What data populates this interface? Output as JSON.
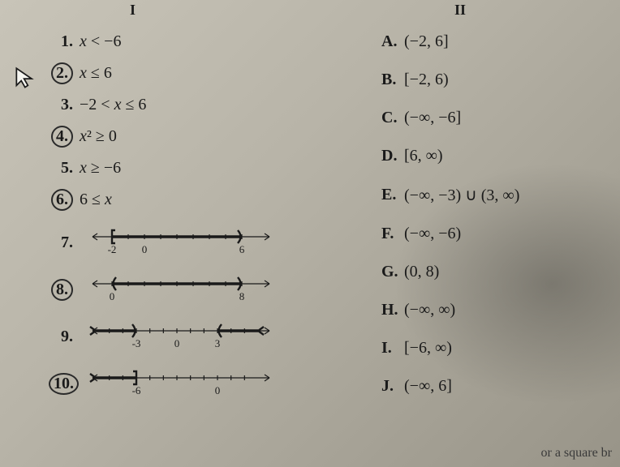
{
  "headers": {
    "left": "I",
    "right": "II"
  },
  "left_items": [
    {
      "n": "1.",
      "circled": false,
      "expr": "x < −6"
    },
    {
      "n": "2.",
      "circled": true,
      "expr": "x ≤ 6"
    },
    {
      "n": "3.",
      "circled": false,
      "expr": "−2 < x ≤ 6"
    },
    {
      "n": "4.",
      "circled": true,
      "expr": "x² ≥ 0"
    },
    {
      "n": "5.",
      "circled": false,
      "expr": "x ≥ −6"
    },
    {
      "n": "6.",
      "circled": true,
      "expr": "6 ≤ x"
    }
  ],
  "numberlines": [
    {
      "n": "7.",
      "circled": false,
      "min": -3,
      "max": 7,
      "ticks": [
        -2,
        0,
        6
      ],
      "labels": [
        {
          "v": -2,
          "t": "-2"
        },
        {
          "v": 0,
          "t": "0"
        },
        {
          "v": 6,
          "t": "6"
        }
      ],
      "segments": [
        {
          "from": -2,
          "to": 6,
          "left": "bracket",
          "right": "paren"
        }
      ]
    },
    {
      "n": "8.",
      "circled": true,
      "min": -1,
      "max": 9,
      "ticks": [
        0,
        8
      ],
      "labels": [
        {
          "v": 0,
          "t": "0"
        },
        {
          "v": 8,
          "t": "8"
        }
      ],
      "segments": [
        {
          "from": 0,
          "to": 8,
          "left": "paren",
          "right": "paren"
        }
      ]
    },
    {
      "n": "9.",
      "circled": false,
      "min": -6,
      "max": 6,
      "ticks": [
        -3,
        0,
        3
      ],
      "labels": [
        {
          "v": -3,
          "t": "-3"
        },
        {
          "v": 0,
          "t": "0"
        },
        {
          "v": 3,
          "t": "3"
        }
      ],
      "segments": [
        {
          "from": -6,
          "to": -3,
          "left": "arrow",
          "right": "paren"
        },
        {
          "from": 3,
          "to": 6,
          "left": "paren",
          "right": "arrow"
        }
      ]
    },
    {
      "n": "10.",
      "circled": true,
      "min": -9,
      "max": 3,
      "ticks": [
        -6,
        0
      ],
      "labels": [
        {
          "v": -6,
          "t": "-6"
        },
        {
          "v": 0,
          "t": "0"
        }
      ],
      "segments": [
        {
          "from": -9,
          "to": -6,
          "left": "arrow",
          "right": "bracket"
        }
      ]
    }
  ],
  "right_items": [
    {
      "l": "A.",
      "iv": "(−2, 6]"
    },
    {
      "l": "B.",
      "iv": "[−2, 6)"
    },
    {
      "l": "C.",
      "iv": "(−∞, −6]"
    },
    {
      "l": "D.",
      "iv": "[6, ∞)"
    },
    {
      "l": "E.",
      "iv": "(−∞, −3) ∪ (3, ∞)"
    },
    {
      "l": "F.",
      "iv": "(−∞, −6)"
    },
    {
      "l": "G.",
      "iv": "(0, 8)"
    },
    {
      "l": "H.",
      "iv": "(−∞, ∞)"
    },
    {
      "l": "I.",
      "iv": "[−6, ∞)"
    },
    {
      "l": "J.",
      "iv": "(−∞, 6]"
    }
  ],
  "footer": "or a square br",
  "style": {
    "line_width": 220,
    "line_height": 40,
    "stroke": "#1a1a1a",
    "thick": 3.5,
    "thin": 1.2,
    "tick_h": 6,
    "label_fs": 13
  }
}
